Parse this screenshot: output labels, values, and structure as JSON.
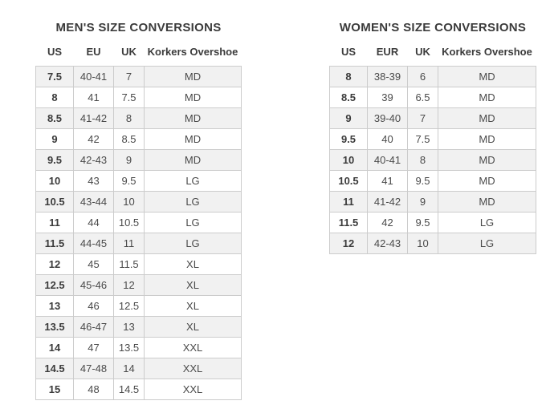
{
  "colors": {
    "title_text": "#3b3b3b",
    "cell_text": "#4a4a4a",
    "row_alt_bg": "#f1f1f1",
    "border": "#cccccc",
    "page_bg": "#ffffff"
  },
  "men_table": {
    "title": "MEN'S SIZE CONVERSIONS",
    "headers": [
      "US",
      "EU",
      "UK",
      "Korkers Overshoe"
    ],
    "rows": [
      [
        "7.5",
        "40-41",
        "7",
        "MD"
      ],
      [
        "8",
        "41",
        "7.5",
        "MD"
      ],
      [
        "8.5",
        "41-42",
        "8",
        "MD"
      ],
      [
        "9",
        "42",
        "8.5",
        "MD"
      ],
      [
        "9.5",
        "42-43",
        "9",
        "MD"
      ],
      [
        "10",
        "43",
        "9.5",
        "LG"
      ],
      [
        "10.5",
        "43-44",
        "10",
        "LG"
      ],
      [
        "11",
        "44",
        "10.5",
        "LG"
      ],
      [
        "11.5",
        "44-45",
        "11",
        "LG"
      ],
      [
        "12",
        "45",
        "11.5",
        "XL"
      ],
      [
        "12.5",
        "45-46",
        "12",
        "XL"
      ],
      [
        "13",
        "46",
        "12.5",
        "XL"
      ],
      [
        "13.5",
        "46-47",
        "13",
        "XL"
      ],
      [
        "14",
        "47",
        "13.5",
        "XXL"
      ],
      [
        "14.5",
        "47-48",
        "14",
        "XXL"
      ],
      [
        "15",
        "48",
        "14.5",
        "XXL"
      ]
    ]
  },
  "women_table": {
    "title": "WOMEN'S SIZE CONVERSIONS",
    "headers": [
      "US",
      "EUR",
      "UK",
      "Korkers Overshoe"
    ],
    "rows": [
      [
        "8",
        "38-39",
        "6",
        "MD"
      ],
      [
        "8.5",
        "39",
        "6.5",
        "MD"
      ],
      [
        "9",
        "39-40",
        "7",
        "MD"
      ],
      [
        "9.5",
        "40",
        "7.5",
        "MD"
      ],
      [
        "10",
        "40-41",
        "8",
        "MD"
      ],
      [
        "10.5",
        "41",
        "9.5",
        "MD"
      ],
      [
        "11",
        "41-42",
        "9",
        "MD"
      ],
      [
        "11.5",
        "42",
        "9.5",
        "LG"
      ],
      [
        "12",
        "42-43",
        "10",
        "LG"
      ]
    ]
  }
}
